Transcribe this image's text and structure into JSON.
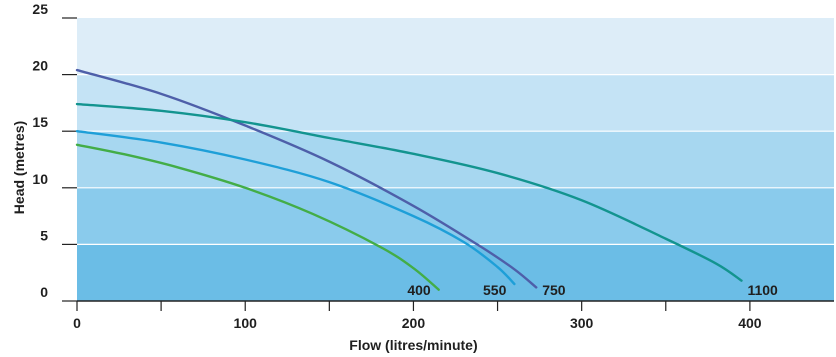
{
  "chart_data": {
    "type": "line",
    "xlabel": "Flow (litres/minute)",
    "ylabel": "Head (metres)",
    "xlim": [
      0,
      450
    ],
    "ylim": [
      0,
      25
    ],
    "x_ticks": [
      0,
      100,
      200,
      300,
      400
    ],
    "x_minor_ticks": [
      50,
      150,
      250,
      350
    ],
    "y_ticks": [
      0,
      5,
      10,
      15,
      20,
      25
    ],
    "grid": true,
    "bands": [
      {
        "from": 0,
        "to": 5,
        "color": "#6bbde6"
      },
      {
        "from": 5,
        "to": 10,
        "color": "#8acbec"
      },
      {
        "from": 10,
        "to": 15,
        "color": "#a7d7f0"
      },
      {
        "from": 15,
        "to": 20,
        "color": "#c4e3f5"
      },
      {
        "from": 20,
        "to": 25,
        "color": "#ddedf8"
      }
    ],
    "series": [
      {
        "name": "400",
        "color": "#43ad47",
        "x": [
          0,
          30,
          60,
          100,
          140,
          180,
          200,
          215
        ],
        "y": [
          13.8,
          12.9,
          11.8,
          10.0,
          7.7,
          4.8,
          2.9,
          1.0
        ]
      },
      {
        "name": "550",
        "color": "#1e9fd8",
        "x": [
          0,
          50,
          100,
          150,
          200,
          230,
          250,
          260
        ],
        "y": [
          15.0,
          14.0,
          12.5,
          10.5,
          7.5,
          5.2,
          3.0,
          1.5
        ]
      },
      {
        "name": "750",
        "color": "#4e5fa9",
        "x": [
          0,
          50,
          100,
          150,
          200,
          240,
          260,
          273
        ],
        "y": [
          20.4,
          18.3,
          15.5,
          12.3,
          8.4,
          4.8,
          2.8,
          1.2
        ]
      },
      {
        "name": "1100",
        "color": "#13948f",
        "x": [
          0,
          50,
          100,
          150,
          200,
          250,
          300,
          350,
          380,
          395
        ],
        "y": [
          17.4,
          16.8,
          15.8,
          14.4,
          13.0,
          11.3,
          8.9,
          5.5,
          3.3,
          1.8
        ]
      }
    ]
  }
}
